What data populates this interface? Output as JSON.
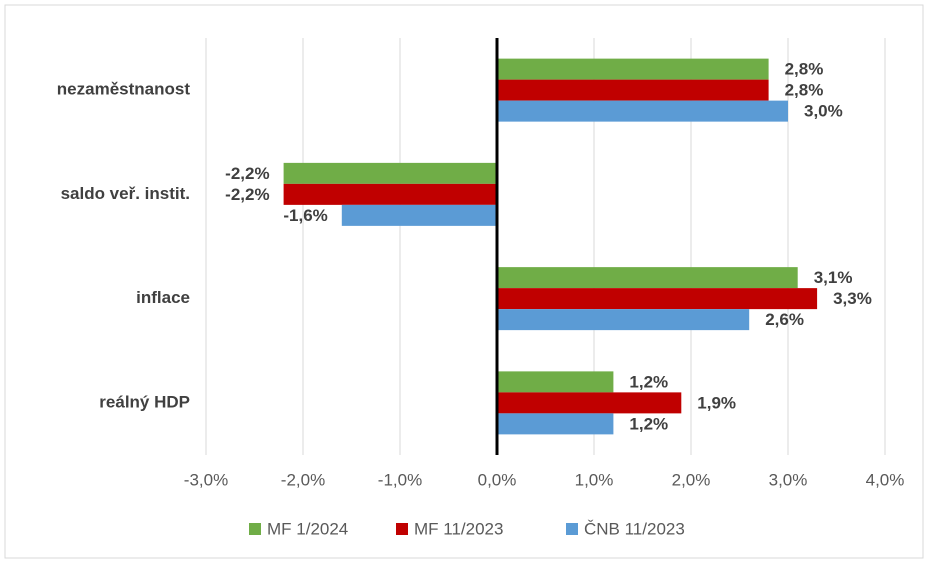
{
  "chart_data": {
    "type": "hbar",
    "categories": [
      "nezaměstnanost",
      "saldo veř. instit.",
      "inflace",
      "reálný HDP"
    ],
    "series": [
      {
        "name": "MF 1/2024",
        "color": "#70ad47",
        "values": [
          2.8,
          -2.2,
          3.1,
          1.2
        ],
        "value_labels": [
          "2,8%",
          "-2,2%",
          "3,1%",
          "1,2%"
        ]
      },
      {
        "name": "MF 11/2023",
        "color": "#c00000",
        "values": [
          2.8,
          -2.2,
          3.3,
          1.9
        ],
        "value_labels": [
          "2,8%",
          "-2,2%",
          "3,3%",
          "1,9%"
        ]
      },
      {
        "name": "ČNB 11/2023",
        "color": "#5b9bd5",
        "values": [
          3.0,
          -1.6,
          2.6,
          1.2
        ],
        "value_labels": [
          "3,0%",
          "-1,6%",
          "2,6%",
          "1,2%"
        ]
      }
    ],
    "xlim": [
      -3,
      4
    ],
    "xticks": [
      {
        "value": -3,
        "label": "-3,0%"
      },
      {
        "value": -2,
        "label": "-2,0%"
      },
      {
        "value": -1,
        "label": "-1,0%"
      },
      {
        "value": 0,
        "label": "0,0%"
      },
      {
        "value": 1,
        "label": "1,0%"
      },
      {
        "value": 2,
        "label": "2,0%"
      },
      {
        "value": 3,
        "label": "3,0%"
      },
      {
        "value": 4,
        "label": "4,0%"
      }
    ],
    "grid": true,
    "legend": "bottom"
  }
}
